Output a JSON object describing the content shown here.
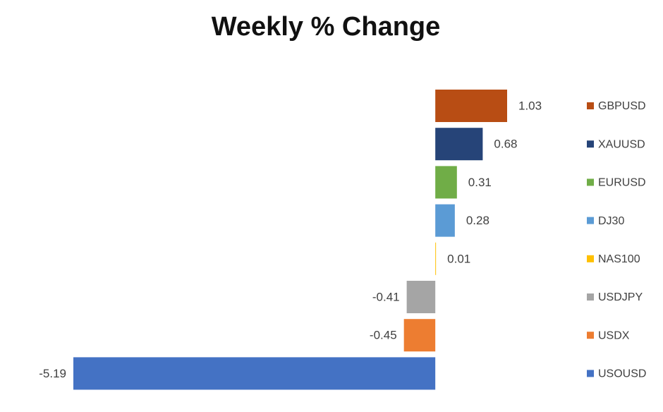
{
  "chart_data": {
    "type": "barh",
    "title": "Weekly % Change",
    "series": [
      {
        "name": "GBPUSD",
        "color": "#b84d14",
        "values": [
          1.03
        ]
      },
      {
        "name": "XAUUSD",
        "color": "#264478",
        "values": [
          0.68
        ]
      },
      {
        "name": "EURUSD",
        "color": "#70ad47",
        "values": [
          0.31
        ]
      },
      {
        "name": "DJ30",
        "color": "#5b9bd5",
        "values": [
          0.28
        ]
      },
      {
        "name": "NAS100",
        "color": "#ffc000",
        "values": [
          0.01
        ]
      },
      {
        "name": "USDJPY",
        "color": "#a5a5a5",
        "values": [
          -0.41
        ]
      },
      {
        "name": "USDX",
        "color": "#ed7d31",
        "values": [
          -0.45
        ]
      },
      {
        "name": "USOUSD",
        "color": "#4472c4",
        "values": [
          -5.19
        ]
      }
    ],
    "legend": "right"
  }
}
